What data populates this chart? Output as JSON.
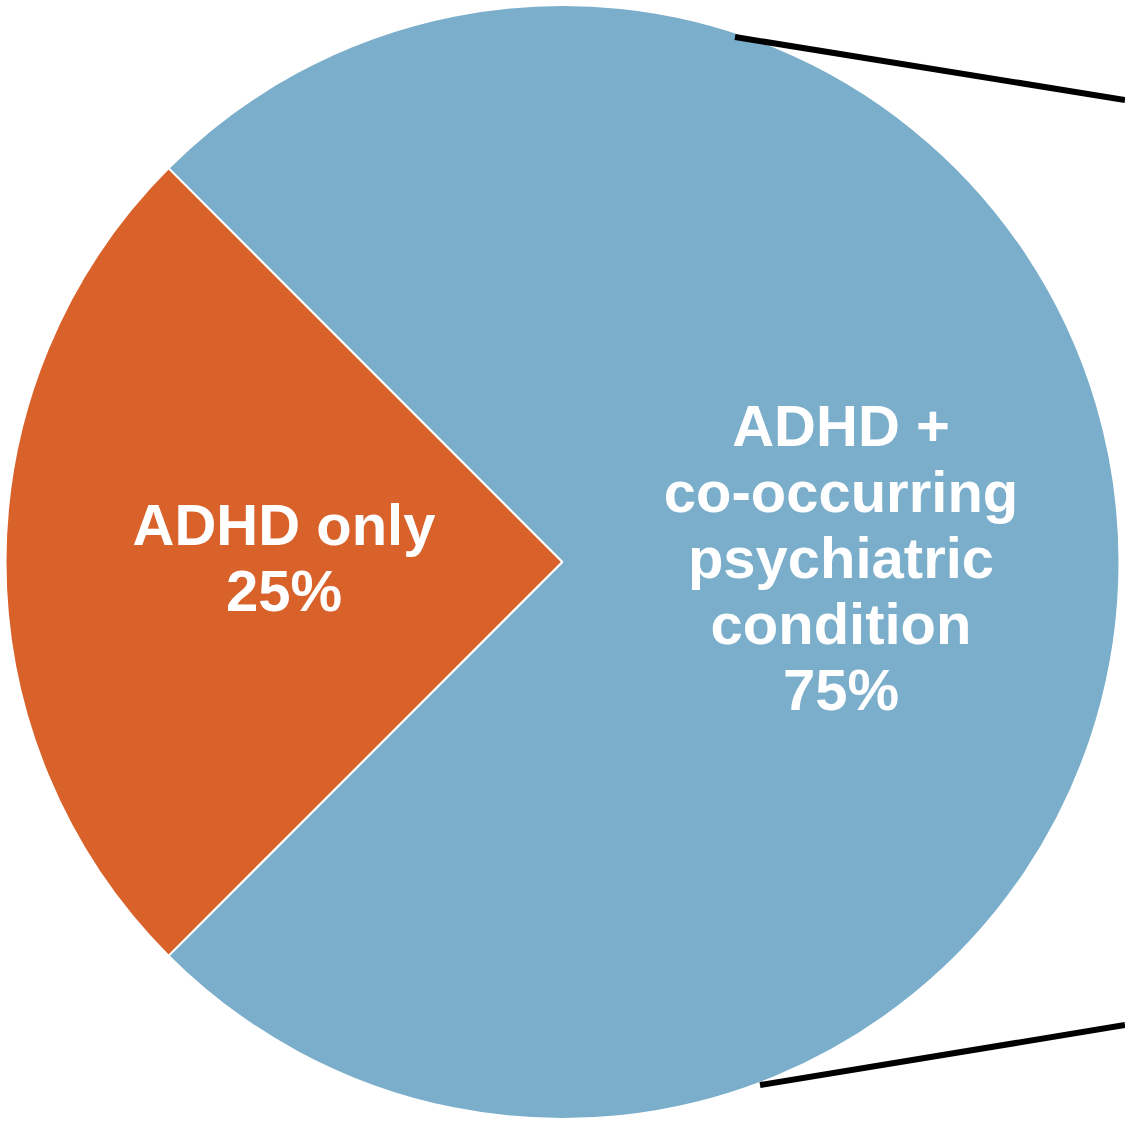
{
  "chart_data": {
    "type": "pie",
    "categories": [
      "ADHD only",
      "ADHD + co-occurring psychiatric condition"
    ],
    "values": [
      25,
      75
    ],
    "colors": [
      "#d9612a",
      "#7aaecb"
    ],
    "value_labels": [
      "25%",
      "75%"
    ],
    "legend": false
  }
}
